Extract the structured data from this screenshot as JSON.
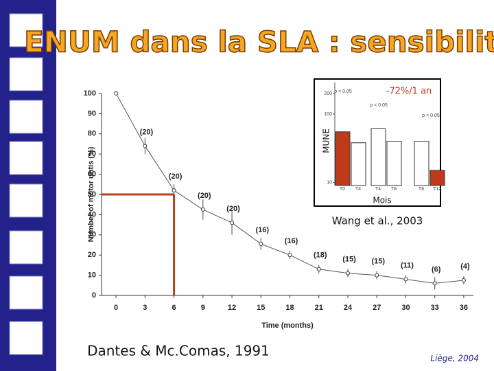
{
  "slide": {
    "title": "ENUM dans la SLA : sensibilité",
    "caption": "Wang et al., 2003",
    "source": "Dantes & Mc.Comas, 1991",
    "footer": "Liège, 2004"
  },
  "chart_data": [
    {
      "type": "line",
      "xlabel": "Time (months)",
      "ylabel": "Number of motor untis (%)",
      "x": [
        0,
        3,
        6,
        9,
        12,
        15,
        18,
        21,
        24,
        27,
        30,
        33,
        36
      ],
      "values": [
        100,
        74,
        52,
        42.5,
        36,
        25.5,
        20,
        13,
        11,
        10,
        8,
        6,
        7.5
      ],
      "errors": [
        null,
        4,
        3,
        5,
        6,
        3,
        2,
        2,
        2,
        2,
        2,
        3,
        2
      ],
      "point_labels": [
        null,
        "(20)",
        "(20)",
        "(20)",
        "(20)",
        "(16)",
        "(16)",
        "(18)",
        "(15)",
        "(15)",
        "(11)",
        "(6)",
        "(4)"
      ],
      "color": "#555555",
      "xlim": [
        -1.5,
        37
      ],
      "ylim": [
        0,
        100
      ],
      "xticks": [
        0,
        3,
        6,
        9,
        12,
        15,
        18,
        21,
        24,
        27,
        30,
        33,
        36
      ],
      "yticks": [
        0,
        10,
        20,
        30,
        40,
        50,
        60,
        70,
        80,
        90,
        100
      ],
      "highlight": {
        "x": 6,
        "y": 50,
        "color": "#b5401a"
      }
    },
    {
      "type": "bar",
      "ylabel": "MUNE",
      "xlabel": "Mois",
      "annotation": "-72%/1 an",
      "p_labels": [
        "p < 0.05",
        "p < 0.05",
        "p < 0.05"
      ],
      "categories": [
        "T0",
        "T4",
        "T4",
        "T8",
        "T8",
        "T12"
      ],
      "values": [
        55,
        38,
        61,
        40,
        40,
        15
      ],
      "colors": [
        "#c0391b",
        "#ffffff",
        "#ffffff",
        "#ffffff",
        "#ffffff",
        "#c0391b"
      ],
      "log_scale": true,
      "ylim": [
        9,
        290
      ],
      "yticks": [
        10,
        100,
        200
      ]
    }
  ]
}
